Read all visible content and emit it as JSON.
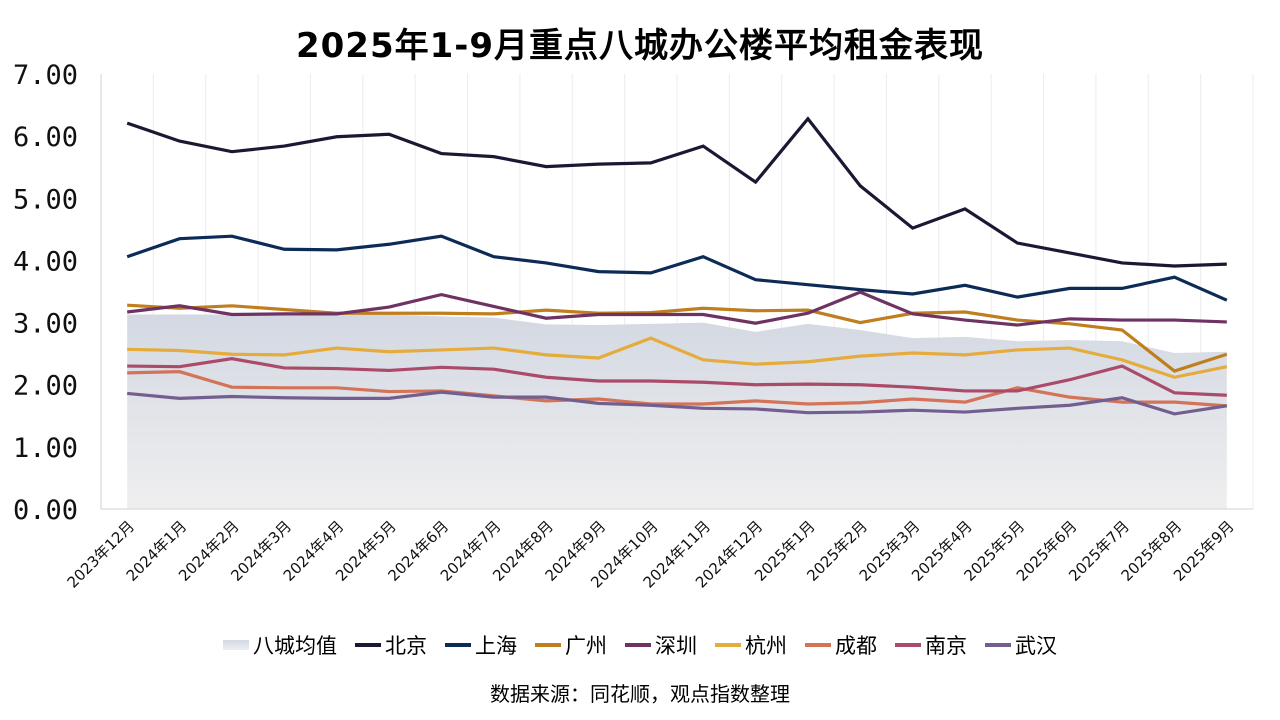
{
  "chart_data": {
    "type": "line",
    "title": "2025年1-9月重点八城办公楼平均租金表现",
    "xlabel": "",
    "ylabel": "",
    "ylim": [
      0,
      7
    ],
    "yticks": [
      "0.00",
      "1.00",
      "2.00",
      "3.00",
      "4.00",
      "5.00",
      "6.00",
      "7.00"
    ],
    "grid": "vertical category lines",
    "legend_position": "bottom",
    "categories": [
      "2023年12月",
      "2024年1月",
      "2024年2月",
      "2024年3月",
      "2024年4月",
      "2024年5月",
      "2024年6月",
      "2024年7月",
      "2024年8月",
      "2024年9月",
      "2024年10月",
      "2024年11月",
      "2024年12月",
      "2025年1月",
      "2025年2月",
      "2025年3月",
      "2025年4月",
      "2025年5月",
      "2025年6月",
      "2025年7月",
      "2025年8月",
      "2025年9月"
    ],
    "area_series": {
      "name": "八城均值",
      "color": "#d3d8e2",
      "values": [
        3.13,
        3.13,
        3.13,
        3.12,
        3.12,
        3.13,
        3.1,
        3.08,
        2.97,
        2.96,
        2.98,
        3.0,
        2.85,
        2.98,
        2.88,
        2.75,
        2.77,
        2.7,
        2.72,
        2.7,
        2.51,
        2.53
      ]
    },
    "series": [
      {
        "name": "北京",
        "color": "#1c1733",
        "values": [
          6.21,
          5.92,
          5.75,
          5.84,
          5.99,
          6.03,
          5.72,
          5.67,
          5.51,
          5.55,
          5.57,
          5.84,
          5.26,
          6.28,
          5.2,
          4.52,
          4.83,
          4.28,
          4.12,
          3.96,
          3.91,
          3.94
        ]
      },
      {
        "name": "上海",
        "color": "#0d2b57",
        "values": [
          4.06,
          4.35,
          4.39,
          4.18,
          4.17,
          4.26,
          4.39,
          4.06,
          3.96,
          3.82,
          3.8,
          4.06,
          3.69,
          3.61,
          3.53,
          3.46,
          3.6,
          3.41,
          3.55,
          3.55,
          3.73,
          3.36
        ]
      },
      {
        "name": "广州",
        "color": "#c07f1e",
        "values": [
          3.28,
          3.23,
          3.27,
          3.21,
          3.15,
          3.15,
          3.15,
          3.14,
          3.2,
          3.15,
          3.16,
          3.23,
          3.19,
          3.2,
          3.0,
          3.15,
          3.17,
          3.04,
          2.98,
          2.88,
          2.22,
          2.49
        ]
      },
      {
        "name": "深圳",
        "color": "#6e3362",
        "values": [
          3.17,
          3.27,
          3.13,
          3.14,
          3.14,
          3.25,
          3.45,
          3.26,
          3.07,
          3.13,
          3.13,
          3.13,
          2.99,
          3.15,
          3.49,
          3.14,
          3.04,
          2.96,
          3.06,
          3.04,
          3.04,
          3.01
        ]
      },
      {
        "name": "杭州",
        "color": "#e5ab3c",
        "values": [
          2.57,
          2.55,
          2.49,
          2.48,
          2.59,
          2.53,
          2.56,
          2.59,
          2.48,
          2.43,
          2.75,
          2.4,
          2.33,
          2.37,
          2.46,
          2.51,
          2.48,
          2.56,
          2.59,
          2.4,
          2.12,
          2.29
        ]
      },
      {
        "name": "成都",
        "color": "#d37358",
        "values": [
          2.19,
          2.21,
          1.96,
          1.95,
          1.95,
          1.89,
          1.9,
          1.82,
          1.74,
          1.77,
          1.69,
          1.69,
          1.74,
          1.69,
          1.71,
          1.77,
          1.72,
          1.95,
          1.8,
          1.72,
          1.72,
          1.66
        ]
      },
      {
        "name": "南京",
        "color": "#ab4a69",
        "values": [
          2.3,
          2.29,
          2.42,
          2.27,
          2.26,
          2.23,
          2.28,
          2.25,
          2.12,
          2.06,
          2.06,
          2.04,
          2.0,
          2.01,
          2.0,
          1.96,
          1.9,
          1.9,
          2.08,
          2.3,
          1.87,
          1.83
        ]
      },
      {
        "name": "武汉",
        "color": "#735f8f",
        "values": [
          1.86,
          1.78,
          1.81,
          1.79,
          1.78,
          1.78,
          1.88,
          1.8,
          1.8,
          1.7,
          1.67,
          1.62,
          1.61,
          1.55,
          1.56,
          1.59,
          1.56,
          1.62,
          1.67,
          1.79,
          1.53,
          1.66
        ]
      }
    ],
    "source_note": "数据来源：同花顺，观点指数整理"
  },
  "legend": [
    {
      "label": "八城均值",
      "color": "#d3d8e2",
      "kind": "area"
    },
    {
      "label": "北京",
      "color": "#1c1733",
      "kind": "line"
    },
    {
      "label": "上海",
      "color": "#0d2b57",
      "kind": "line"
    },
    {
      "label": "广州",
      "color": "#c07f1e",
      "kind": "line"
    },
    {
      "label": "深圳",
      "color": "#6e3362",
      "kind": "line"
    },
    {
      "label": "杭州",
      "color": "#e5ab3c",
      "kind": "line"
    },
    {
      "label": "成都",
      "color": "#d37358",
      "kind": "line"
    },
    {
      "label": "南京",
      "color": "#ab4a69",
      "kind": "line"
    },
    {
      "label": "武汉",
      "color": "#735f8f",
      "kind": "line"
    }
  ]
}
